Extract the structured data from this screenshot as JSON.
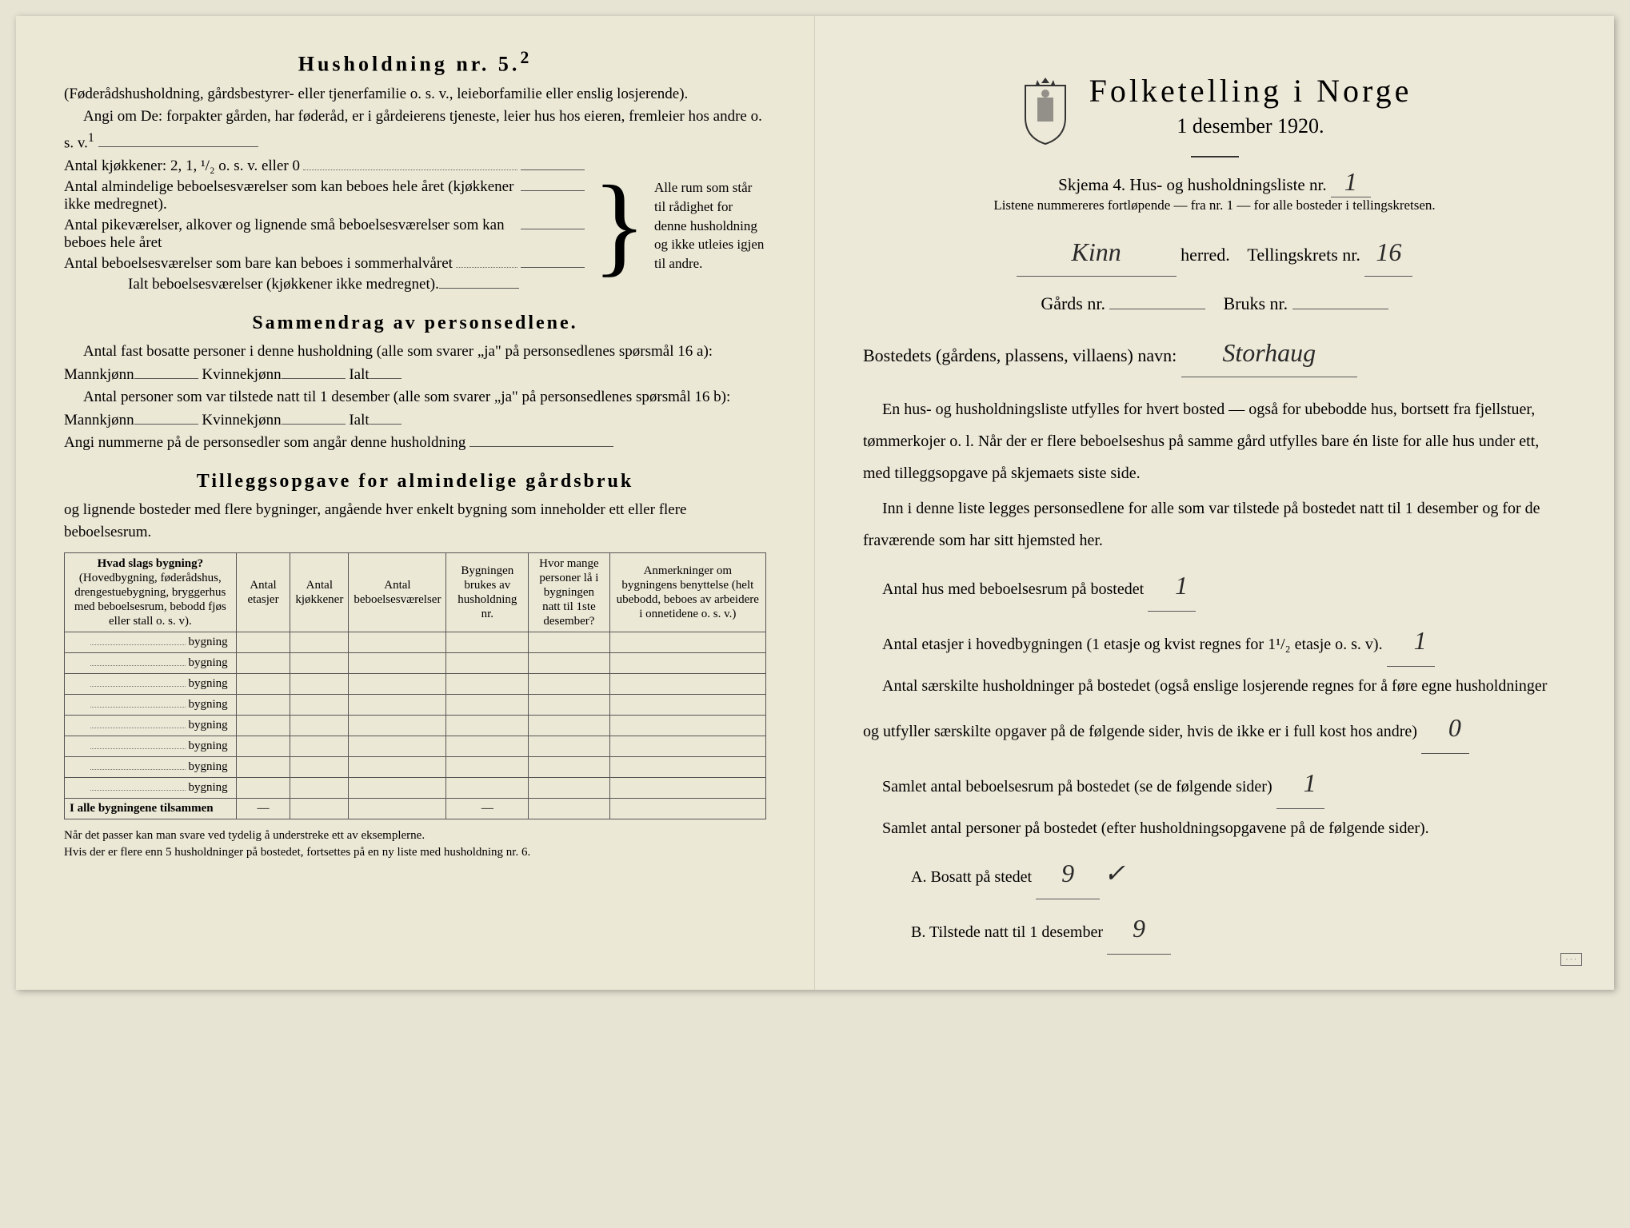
{
  "left": {
    "title": "Husholdning nr. 5.",
    "title_sup": "2",
    "intro_paren": "(Føderådshusholdning, gårdsbestyrer- eller tjenerfamilie o. s. v., leieborfamilie eller enslig losjerende).",
    "intro_main": "Angi om De: forpakter gården, har føderåd, er i gårdeierens tjeneste, leier hus hos eieren, fremleier hos andre o. s. v.",
    "intro_sup": "1",
    "kjokken_label": "Antal kjøkkener: 2, 1, ¹/₂ o. s. v. eller 0",
    "rooms": [
      "Antal almindelige beboelsesværelser som kan beboes hele året (kjøkkener ikke medregnet).",
      "Antal pikeværelser, alkover og lignende små beboelsesværelser som kan beboes hele året",
      "Antal beboelsesværelser som bare kan beboes i sommerhalvåret"
    ],
    "ialt_label": "Ialt beboelsesværelser (kjøkkener ikke medregnet).",
    "brace_text": "Alle rum som står til rådighet for denne husholdning og ikke utleies igjen til andre.",
    "summary_title": "Sammendrag av personsedlene.",
    "summary_1": "Antal fast bosatte personer i denne husholdning (alle som svarer „ja\" på personsedlenes spørsmål 16 a): Mannkjønn",
    "kvinne": "Kvinnekjønn",
    "ialt": "Ialt",
    "summary_2": "Antal personer som var tilstede natt til 1 desember (alle som svarer „ja\" på personsedlenes spørsmål 16 b): Mannkjønn",
    "angi": "Angi nummerne på de personsedler som angår denne husholdning",
    "tillegg_title": "Tilleggsopgave for almindelige gårdsbruk",
    "tillegg_sub": "og lignende bosteder med flere bygninger, angående hver enkelt bygning som inneholder ett eller flere beboelsesrum.",
    "table_headers": {
      "col1_main": "Hvad slags bygning?",
      "col1_sub": "(Hovedbygning, føderådshus, drengestuebygning, bryggerhus med beboelsesrum, bebodd fjøs eller stall o. s. v).",
      "col2": "Antal etasjer",
      "col3": "Antal kjøkkener",
      "col4": "Antal beboelsesværelser",
      "col5": "Bygningen brukes av husholdning nr.",
      "col6": "Hvor mange personer lå i bygningen natt til 1ste desember?",
      "col7": "Anmerkninger om bygningens benyttelse (helt ubebodd, beboes av arbeidere i onnetidene o. s. v.)"
    },
    "bygning_word": "bygning",
    "bygning_rows": 8,
    "total_row": "I alle bygningene tilsammen",
    "footnote": "Når det passer kan man svare ved tydelig å understreke ett av eksemplerne.\nHvis der er flere enn 5 husholdninger på bostedet, fortsettes på en ny liste med husholdning nr. 6."
  },
  "right": {
    "main_title": "Folketelling i Norge",
    "date": "1 desember 1920.",
    "schema": "Skjema 4. Hus- og husholdningsliste nr.",
    "schema_value": "1",
    "note": "Listene nummereres fortløpende — fra nr. 1 — for alle bosteder i tellingskretsen.",
    "herred_value": "Kinn",
    "herred_label": "herred.",
    "krets_label": "Tellingskrets nr.",
    "krets_value": "16",
    "gards_label": "Gårds nr.",
    "gards_value": "",
    "bruks_label": "Bruks nr.",
    "bruks_value": "",
    "bosted_label": "Bostedets (gårdens, plassens, villaens) navn:",
    "bosted_value": "Storhaug",
    "para1": "En hus- og husholdningsliste utfylles for hvert bosted — også for ubebodde hus, bortsett fra fjellstuer, tømmerkojer o. l. Når der er flere beboelseshus på samme gård utfylles bare én liste for alle hus under ett, med tilleggsopgave på skjemaets siste side.",
    "para2": "Inn i denne liste legges personsedlene for alle som var tilstede på bostedet natt til 1 desember og for de fraværende som har sitt hjemsted her.",
    "field1_label": "Antal hus med beboelsesrum på bostedet",
    "field1_value": "1",
    "field2_label": "Antal etasjer i hovedbygningen (1 etasje og kvist regnes for 1¹/₂ etasje o. s. v).",
    "field2_value": "1",
    "field3_label": "Antal særskilte husholdninger på bostedet (også enslige losjerende regnes for å føre egne husholdninger og utfyller særskilte opgaver på de følgende sider, hvis de ikke er i full kost hos andre)",
    "field3_value": "0",
    "field4_label": "Samlet antal beboelsesrum på bostedet (se de følgende sider)",
    "field4_value": "1",
    "field5_label": "Samlet antal personer på bostedet (efter husholdningsopgavene på de følgende sider).",
    "fieldA_label": "A. Bosatt på stedet",
    "fieldA_value": "9",
    "fieldA_check": "✓",
    "fieldB_label": "B. Tilstede natt til 1 desember",
    "fieldB_value": "9"
  },
  "colors": {
    "paper": "#ebe7d5",
    "ink": "#2a2a2a",
    "handwriting": "#2a2a2a"
  }
}
